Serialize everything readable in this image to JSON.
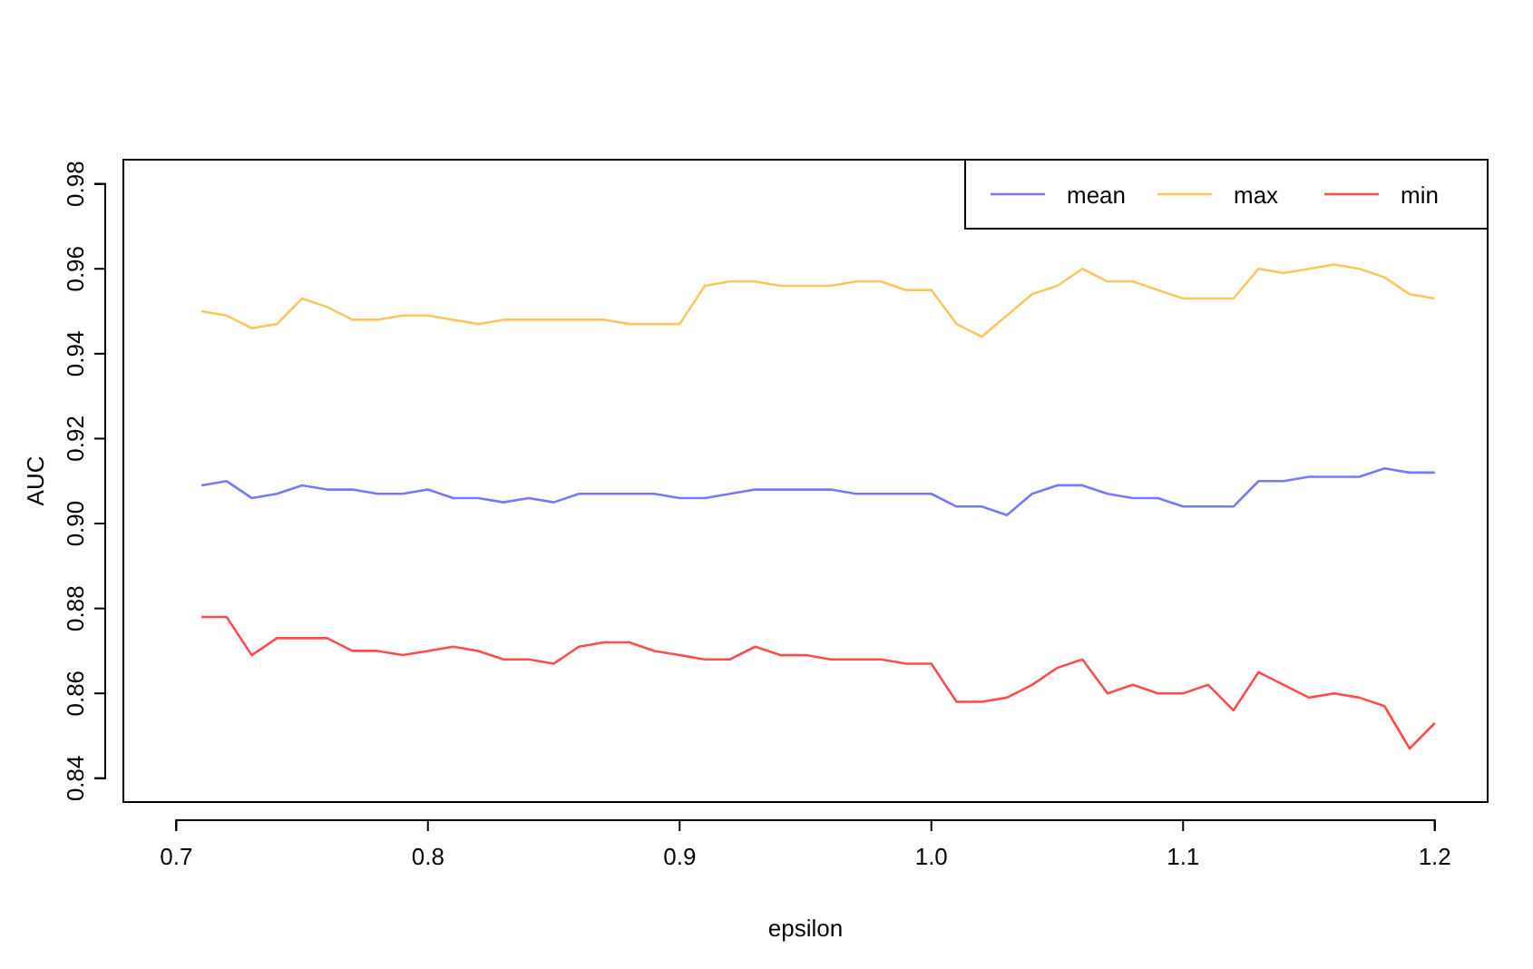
{
  "chart_data": {
    "type": "line",
    "xlabel": "epsilon",
    "ylabel": "AUC",
    "x": [
      0.71,
      0.72,
      0.73,
      0.74,
      0.75,
      0.76,
      0.77,
      0.78,
      0.79,
      0.8,
      0.81,
      0.82,
      0.83,
      0.84,
      0.85,
      0.86,
      0.87,
      0.88,
      0.89,
      0.9,
      0.91,
      0.92,
      0.93,
      0.94,
      0.95,
      0.96,
      0.97,
      0.98,
      0.99,
      1.0,
      1.01,
      1.02,
      1.03,
      1.04,
      1.05,
      1.06,
      1.07,
      1.08,
      1.09,
      1.1,
      1.11,
      1.12,
      1.13,
      1.14,
      1.15,
      1.16,
      1.17,
      1.18,
      1.19,
      1.2
    ],
    "series": [
      {
        "name": "mean",
        "color": "#7777ff",
        "values": [
          0.909,
          0.91,
          0.906,
          0.907,
          0.909,
          0.908,
          0.908,
          0.907,
          0.907,
          0.908,
          0.906,
          0.906,
          0.905,
          0.906,
          0.905,
          0.907,
          0.907,
          0.907,
          0.907,
          0.906,
          0.906,
          0.907,
          0.908,
          0.908,
          0.908,
          0.908,
          0.907,
          0.907,
          0.907,
          0.907,
          0.904,
          0.904,
          0.902,
          0.907,
          0.909,
          0.909,
          0.907,
          0.906,
          0.906,
          0.904,
          0.904,
          0.904,
          0.91,
          0.91,
          0.911,
          0.911,
          0.911,
          0.913,
          0.912,
          0.912
        ]
      },
      {
        "name": "max",
        "color": "#ffc560",
        "values": [
          0.95,
          0.949,
          0.946,
          0.947,
          0.953,
          0.951,
          0.948,
          0.948,
          0.949,
          0.949,
          0.948,
          0.947,
          0.948,
          0.948,
          0.948,
          0.948,
          0.948,
          0.947,
          0.947,
          0.947,
          0.956,
          0.957,
          0.957,
          0.956,
          0.956,
          0.956,
          0.957,
          0.957,
          0.955,
          0.955,
          0.947,
          0.944,
          0.949,
          0.954,
          0.956,
          0.96,
          0.957,
          0.957,
          0.955,
          0.953,
          0.953,
          0.953,
          0.96,
          0.959,
          0.96,
          0.961,
          0.96,
          0.958,
          0.954,
          0.953
        ]
      },
      {
        "name": "min",
        "color": "#ff4d4d",
        "values": [
          0.878,
          0.878,
          0.869,
          0.873,
          0.873,
          0.873,
          0.87,
          0.87,
          0.869,
          0.87,
          0.871,
          0.87,
          0.868,
          0.868,
          0.867,
          0.871,
          0.872,
          0.872,
          0.87,
          0.869,
          0.868,
          0.868,
          0.871,
          0.869,
          0.869,
          0.868,
          0.868,
          0.868,
          0.867,
          0.867,
          0.858,
          0.858,
          0.859,
          0.862,
          0.866,
          0.868,
          0.86,
          0.862,
          0.86,
          0.86,
          0.862,
          0.856,
          0.865,
          0.862,
          0.859,
          0.86,
          0.859,
          0.857,
          0.847,
          0.853
        ]
      }
    ],
    "xlim": [
      0.679,
      1.221
    ],
    "xticks": [
      {
        "value": 0.7,
        "label": "0.7"
      },
      {
        "value": 0.8,
        "label": "0.8"
      },
      {
        "value": 0.9,
        "label": "0.9"
      },
      {
        "value": 1.0,
        "label": "1.0"
      },
      {
        "value": 1.1,
        "label": "1.1"
      },
      {
        "value": 1.2,
        "label": "1.2"
      }
    ],
    "ylim": [
      0.8344,
      0.9857
    ],
    "yticks": [
      0.84,
      0.86,
      0.88,
      {
        "value": 0.9,
        "label": "0.90"
      },
      0.92,
      0.94,
      0.96,
      0.98
    ],
    "grid": false,
    "legend": "top right",
    "marker": "none",
    "line_style": "solid"
  }
}
